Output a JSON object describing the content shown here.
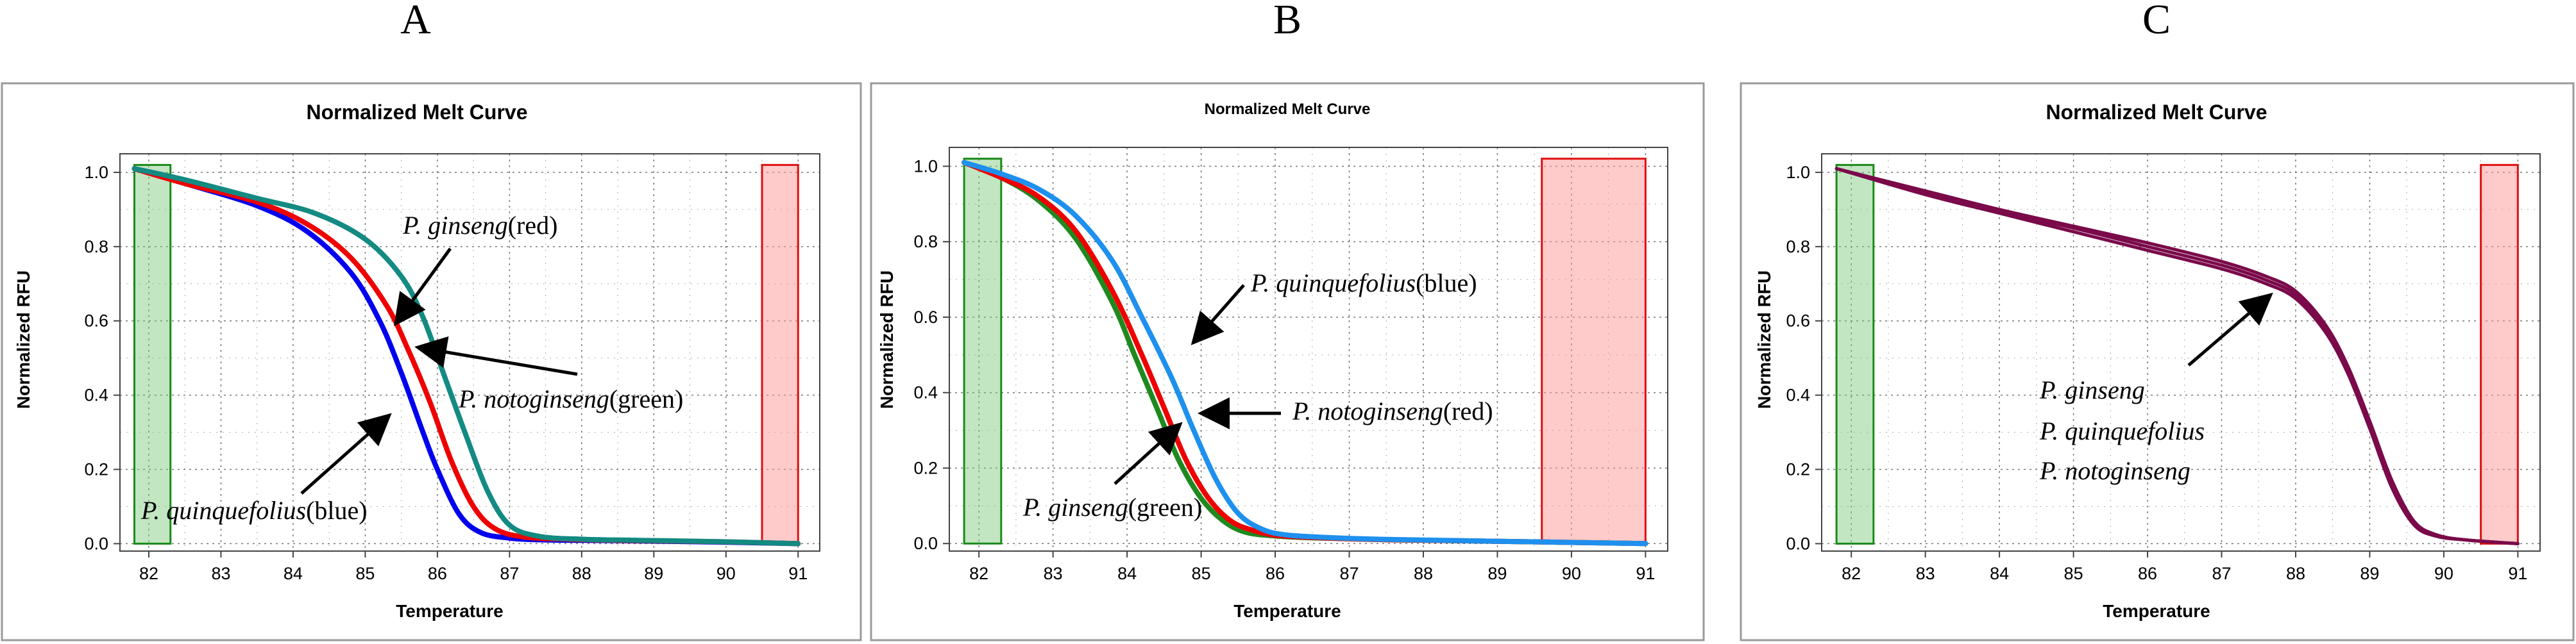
{
  "panel_labels": [
    "A",
    "B",
    "C"
  ],
  "chart_data": [
    {
      "type": "line",
      "title": "Normalized Melt Curve",
      "xlabel": "Temperature",
      "ylabel": "Normalized RFU",
      "xlim": [
        81.6,
        91.3
      ],
      "ylim": [
        -0.02,
        1.05
      ],
      "xticks": [
        "82",
        "83",
        "84",
        "85",
        "86",
        "87",
        "88",
        "89",
        "90",
        "91"
      ],
      "yticks": [
        "0.0",
        "0.2",
        "0.4",
        "0.6",
        "0.8",
        "1.0"
      ],
      "grid": true,
      "start_region": [
        81.8,
        82.3
      ],
      "end_region": [
        90.5,
        91.0
      ],
      "series": [
        {
          "color": "#0000ee",
          "x": [
            81.8,
            82.5,
            83.5,
            84.2,
            84.8,
            85.2,
            85.5,
            85.8,
            86.0,
            86.3,
            86.6,
            87.0,
            87.5,
            88.5,
            90.0,
            91.0
          ],
          "y": [
            1.01,
            0.97,
            0.91,
            0.84,
            0.73,
            0.6,
            0.46,
            0.3,
            0.2,
            0.08,
            0.03,
            0.015,
            0.01,
            0.008,
            0.004,
            0.0
          ]
        },
        {
          "color": "#ee0000",
          "x": [
            81.8,
            82.5,
            83.5,
            84.2,
            84.8,
            85.3,
            85.6,
            85.9,
            86.2,
            86.5,
            86.8,
            87.2,
            87.8,
            88.5,
            90.0,
            91.0
          ],
          "y": [
            1.01,
            0.97,
            0.92,
            0.86,
            0.77,
            0.64,
            0.52,
            0.38,
            0.22,
            0.1,
            0.04,
            0.018,
            0.012,
            0.009,
            0.005,
            0.0
          ]
        },
        {
          "color": "#138a82",
          "x": [
            81.8,
            82.5,
            83.5,
            84.3,
            85.0,
            85.5,
            85.8,
            86.1,
            86.4,
            86.7,
            87.0,
            87.4,
            88.0,
            88.8,
            90.0,
            91.0
          ],
          "y": [
            1.01,
            0.98,
            0.93,
            0.89,
            0.82,
            0.72,
            0.61,
            0.45,
            0.29,
            0.14,
            0.05,
            0.02,
            0.012,
            0.009,
            0.005,
            0.0
          ]
        }
      ],
      "annotations": [
        {
          "italic": "P. ginseng",
          "text": "(red)"
        },
        {
          "italic": "P. notoginseng",
          "text": "(green)"
        },
        {
          "italic": "P. quinquefolius",
          "text": "(blue)"
        }
      ]
    },
    {
      "type": "line",
      "title": "Normalized Melt Curve",
      "xlabel": "Temperature",
      "ylabel": "Normalized RFU",
      "xlim": [
        81.6,
        91.3
      ],
      "ylim": [
        -0.02,
        1.05
      ],
      "xticks": [
        "82",
        "83",
        "84",
        "85",
        "86",
        "87",
        "88",
        "89",
        "90",
        "91"
      ],
      "yticks": [
        "0.0",
        "0.2",
        "0.4",
        "0.6",
        "0.8",
        "1.0"
      ],
      "grid": true,
      "start_region": [
        81.8,
        82.3
      ],
      "end_region": [
        89.6,
        91.0
      ],
      "series": [
        {
          "color": "#1e8a1e",
          "x": [
            81.8,
            82.3,
            82.8,
            83.3,
            83.8,
            84.1,
            84.4,
            84.7,
            85.0,
            85.3,
            85.6,
            86.0,
            86.5,
            87.5,
            89.0,
            91.0
          ],
          "y": [
            1.01,
            0.97,
            0.91,
            0.81,
            0.64,
            0.5,
            0.36,
            0.22,
            0.12,
            0.06,
            0.03,
            0.02,
            0.015,
            0.01,
            0.006,
            0.0
          ]
        },
        {
          "color": "#ee0000",
          "x": [
            81.8,
            82.3,
            82.8,
            83.3,
            83.8,
            84.2,
            84.5,
            84.8,
            85.1,
            85.4,
            85.7,
            86.0,
            86.5,
            87.5,
            89.0,
            91.0
          ],
          "y": [
            1.01,
            0.97,
            0.92,
            0.83,
            0.67,
            0.5,
            0.36,
            0.22,
            0.12,
            0.06,
            0.035,
            0.022,
            0.016,
            0.01,
            0.006,
            0.0
          ]
        },
        {
          "color": "#1e90ee",
          "x": [
            81.8,
            82.3,
            82.8,
            83.3,
            83.8,
            84.2,
            84.6,
            84.9,
            85.2,
            85.5,
            85.8,
            86.1,
            86.6,
            87.5,
            89.0,
            91.0
          ],
          "y": [
            1.01,
            0.98,
            0.94,
            0.87,
            0.75,
            0.6,
            0.44,
            0.3,
            0.17,
            0.08,
            0.04,
            0.024,
            0.017,
            0.011,
            0.006,
            0.0
          ]
        }
      ],
      "annotations": [
        {
          "italic": "P. quinquefolius",
          "text": "(blue)"
        },
        {
          "italic": "P. notoginseng",
          "text": "(red)"
        },
        {
          "italic": "P. ginseng",
          "text": "(green)"
        }
      ]
    },
    {
      "type": "line",
      "title": "Normalized Melt Curve",
      "xlabel": "Temperature",
      "ylabel": "Normalized RFU",
      "xlim": [
        81.6,
        91.3
      ],
      "ylim": [
        -0.02,
        1.05
      ],
      "xticks": [
        "82",
        "83",
        "84",
        "85",
        "86",
        "87",
        "88",
        "89",
        "90",
        "91"
      ],
      "yticks": [
        "0.0",
        "0.2",
        "0.4",
        "0.6",
        "0.8",
        "1.0"
      ],
      "grid": true,
      "start_region": [
        81.8,
        82.3
      ],
      "end_region": [
        90.5,
        91.0
      ],
      "series": [
        {
          "color": "#7a0a4a",
          "x": [
            81.8,
            83.0,
            84.0,
            85.0,
            86.0,
            87.0,
            87.6,
            88.0,
            88.4,
            88.7,
            89.0,
            89.3,
            89.6,
            89.9,
            90.3,
            91.0
          ],
          "y": [
            1.01,
            0.94,
            0.89,
            0.84,
            0.79,
            0.74,
            0.7,
            0.66,
            0.57,
            0.46,
            0.31,
            0.15,
            0.05,
            0.02,
            0.01,
            0.0
          ]
        },
        {
          "color": "#7a0a4a",
          "x": [
            81.8,
            83.0,
            84.0,
            85.0,
            86.0,
            87.0,
            87.6,
            88.0,
            88.4,
            88.7,
            89.0,
            89.3,
            89.6,
            89.9,
            90.3,
            91.0
          ],
          "y": [
            1.01,
            0.945,
            0.895,
            0.85,
            0.8,
            0.75,
            0.71,
            0.67,
            0.58,
            0.47,
            0.32,
            0.16,
            0.055,
            0.022,
            0.01,
            0.0
          ]
        },
        {
          "color": "#7a0a4a",
          "x": [
            81.8,
            83.0,
            84.0,
            85.0,
            86.0,
            87.0,
            87.6,
            88.0,
            88.4,
            88.7,
            89.0,
            89.3,
            89.6,
            89.9,
            90.3,
            91.0
          ],
          "y": [
            1.01,
            0.95,
            0.9,
            0.855,
            0.81,
            0.76,
            0.72,
            0.68,
            0.59,
            0.48,
            0.33,
            0.17,
            0.06,
            0.024,
            0.01,
            0.0
          ]
        }
      ],
      "annotations": [
        {
          "italic": "P. ginseng",
          "text": ""
        },
        {
          "italic": "P. quinquefolius",
          "text": ""
        },
        {
          "italic": "P. notoginseng",
          "text": ""
        }
      ]
    }
  ]
}
